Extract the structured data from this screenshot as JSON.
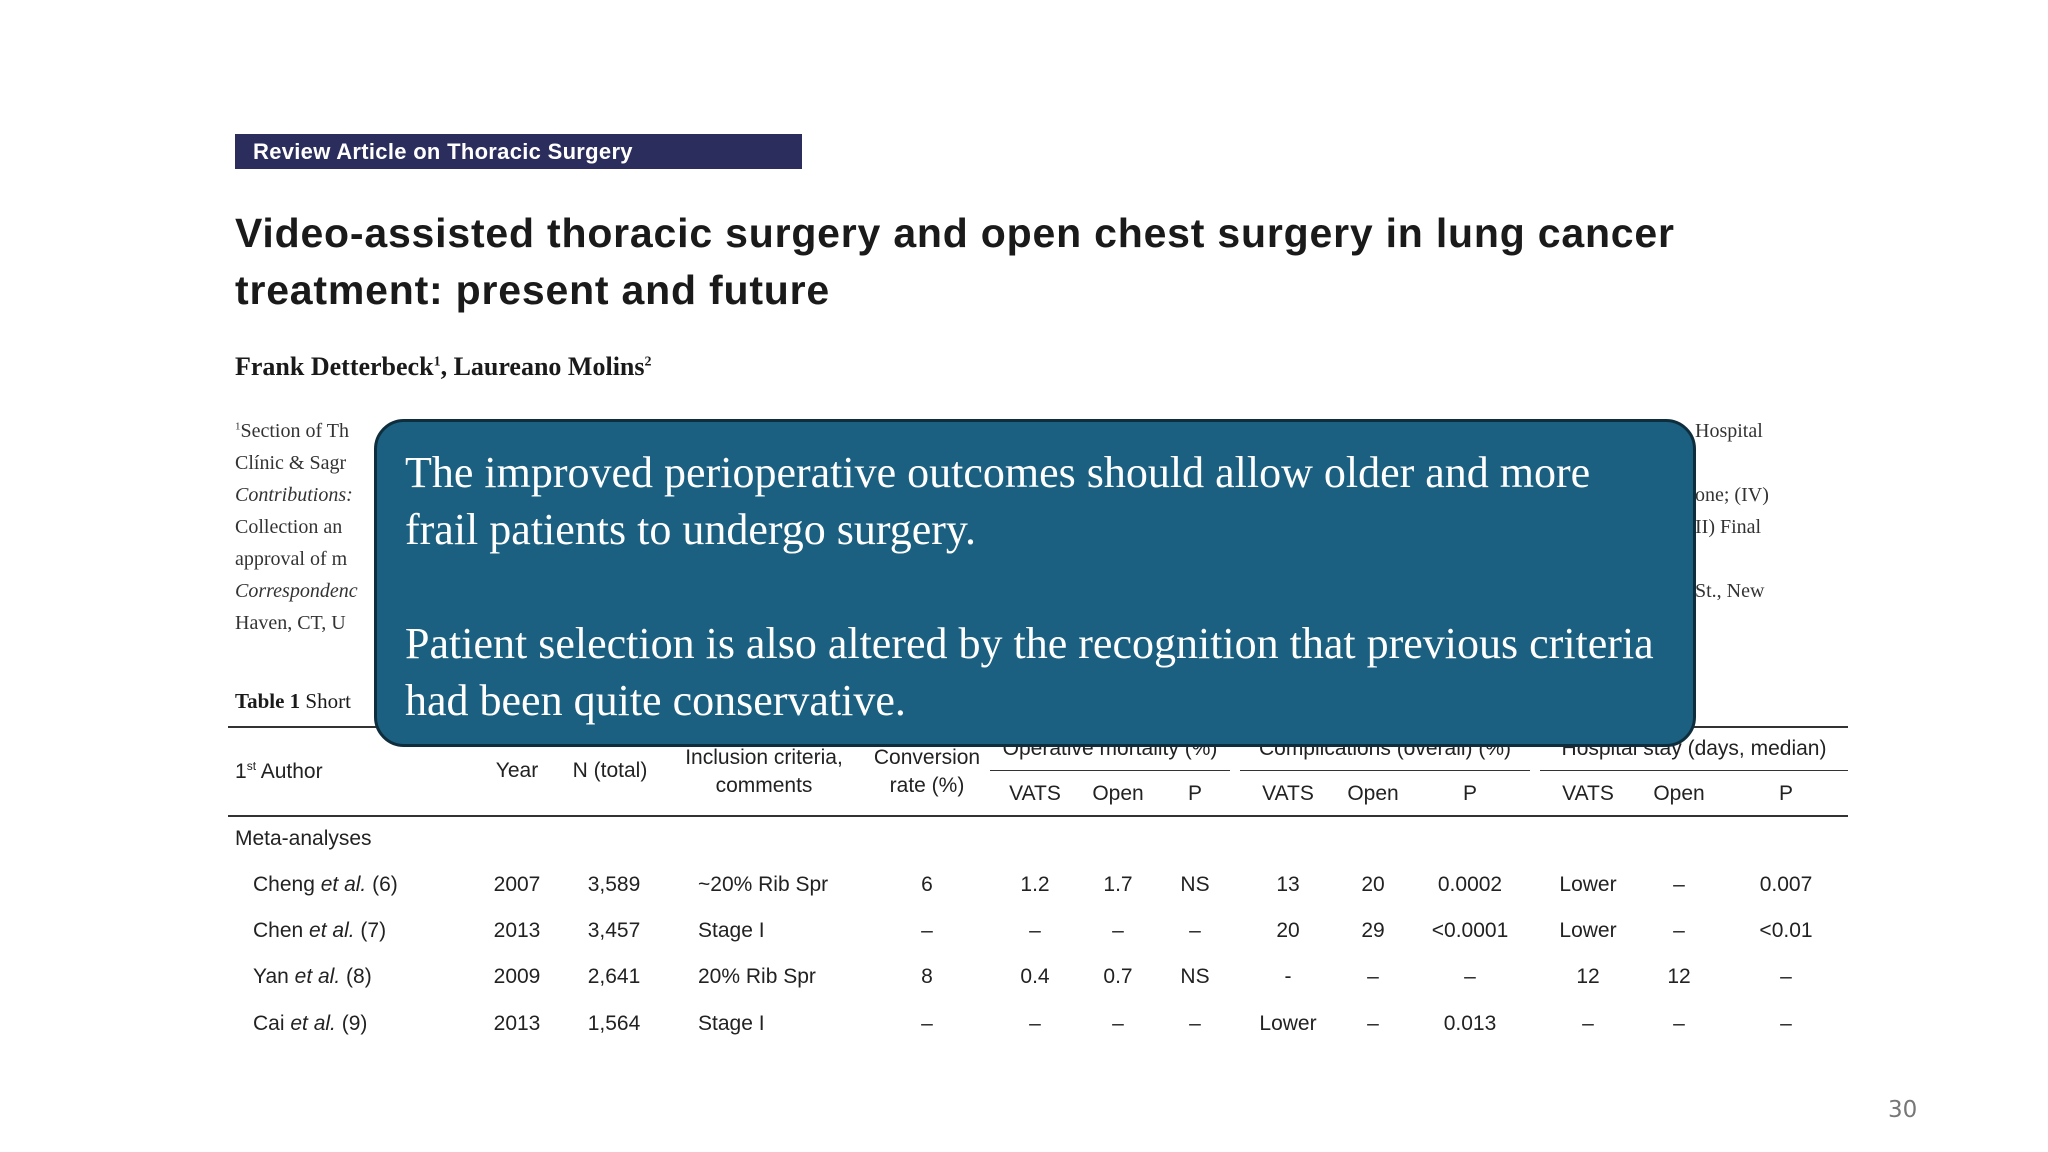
{
  "banner": "Review Article on Thoracic Surgery",
  "title": "Video-assisted thoracic surgery and open chest surgery in lung cancer treatment: present and future",
  "authors": {
    "name1": "Frank Detterbeck",
    "sup1": "1",
    "sep": ", ",
    "name2": "Laureano Molins",
    "sup2": "2"
  },
  "affiliation": {
    "l1": "Section of Th",
    "l1_sup": "1",
    "l2": "Clínic & Sagr",
    "l3": "Contributions:",
    "l4": "Collection an",
    "l5": "approval of m",
    "l6": "Correspondenc",
    "l7": "Haven, CT, U",
    "r1": "Hospital",
    "r3": "one; (IV)",
    "r4": "II) Final",
    "r6": "St., New"
  },
  "table": {
    "caption_bold": "Table 1",
    "caption_text": " Short",
    "headers": {
      "author": "1",
      "author_sup": "st",
      "author_rest": " Author",
      "year": "Year",
      "n": "N (total)",
      "inclusion_1": "Inclusion criteria,",
      "inclusion_2": "comments",
      "conversion_1": "Conversion",
      "conversion_2": "rate (%)",
      "mortality": "Operative mortality (%)",
      "complications": "Complications (overall) (%)",
      "hospital": "Hospital stay (days, median)",
      "vats": "VATS",
      "open": "Open",
      "p": "P"
    },
    "section": "Meta-analyses",
    "rows": [
      {
        "author": "Cheng",
        "etal": " et al.",
        "ref": " (6)",
        "year": "2007",
        "n": "3,589",
        "incl": "~20% Rib Spr",
        "conv": "6",
        "m_vats": "1.2",
        "m_open": "1.7",
        "m_p": "NS",
        "c_vats": "13",
        "c_open": "20",
        "c_p": "0.0002",
        "h_vats": "Lower",
        "h_open": "–",
        "h_p": "0.007"
      },
      {
        "author": "Chen",
        "etal": " et al.",
        "ref": " (7)",
        "year": "2013",
        "n": "3,457",
        "incl": "Stage I",
        "conv": "–",
        "m_vats": "–",
        "m_open": "–",
        "m_p": "–",
        "c_vats": "20",
        "c_open": "29",
        "c_p": "<0.0001",
        "h_vats": "Lower",
        "h_open": "–",
        "h_p": "<0.01"
      },
      {
        "author": "Yan",
        "etal": " et al.",
        "ref": " (8)",
        "year": "2009",
        "n": "2,641",
        "incl": "20% Rib Spr",
        "conv": "8",
        "m_vats": "0.4",
        "m_open": "0.7",
        "m_p": "NS",
        "c_vats": "-",
        "c_open": "–",
        "c_p": "–",
        "h_vats": "12",
        "h_open": "12",
        "h_p": "–"
      },
      {
        "author": "Cai",
        "etal": " et al.",
        "ref": " (9)",
        "year": "2013",
        "n": "1,564",
        "incl": "Stage I",
        "conv": "–",
        "m_vats": "–",
        "m_open": "–",
        "m_p": "–",
        "c_vats": "Lower",
        "c_open": "–",
        "c_p": "0.013",
        "h_vats": "–",
        "h_open": "–",
        "h_p": "–"
      }
    ]
  },
  "overlay": {
    "line1": "The improved perioperative outcomes should allow older and more frail patients to undergo surgery.",
    "line2": "Patient selection is also altered by the recognition that previous criteria had been quite conservative."
  },
  "page_number": "30"
}
